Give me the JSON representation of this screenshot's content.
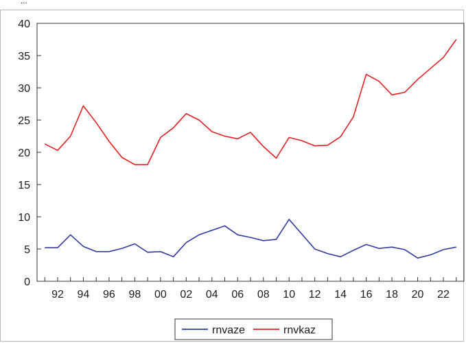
{
  "header_fragment": "...",
  "colors": {
    "rnvaze": "#2e3a9e",
    "rnvkaz": "#e02020",
    "axis": "#333333",
    "frame": "#b9b9b9"
  },
  "chart_data": {
    "type": "line",
    "title": "",
    "xlabel": "",
    "ylabel": "",
    "grid": false,
    "legend_placement": "bottom-center",
    "x": [
      1991,
      1992,
      1993,
      1994,
      1995,
      1996,
      1997,
      1998,
      1999,
      2000,
      2001,
      2002,
      2003,
      2004,
      2005,
      2006,
      2007,
      2008,
      2009,
      2010,
      2011,
      2012,
      2013,
      2014,
      2015,
      2016,
      2017,
      2018,
      2019,
      2020,
      2021,
      2022,
      2023
    ],
    "xlim": [
      1990.4,
      2023.6
    ],
    "ylim": [
      0,
      40
    ],
    "y_ticks": [
      0,
      5,
      10,
      15,
      20,
      25,
      30,
      35,
      40
    ],
    "y_tick_labels": [
      "0",
      "5",
      "10",
      "15",
      "20",
      "25",
      "30",
      "35",
      "40"
    ],
    "x_ticks": [
      1992,
      1994,
      1996,
      1998,
      2000,
      2002,
      2004,
      2006,
      2008,
      2010,
      2012,
      2014,
      2016,
      2018,
      2020,
      2022
    ],
    "x_tick_labels": [
      "92",
      "94",
      "96",
      "98",
      "00",
      "02",
      "04",
      "06",
      "08",
      "10",
      "12",
      "14",
      "16",
      "18",
      "20",
      "22"
    ],
    "series": [
      {
        "name": "rnvaze",
        "color": "#2e3a9e",
        "values": [
          5.2,
          5.2,
          7.2,
          5.4,
          4.6,
          4.6,
          5.1,
          5.8,
          4.5,
          4.6,
          3.8,
          6.0,
          7.2,
          7.9,
          8.6,
          7.2,
          6.8,
          6.3,
          6.5,
          9.6,
          7.3,
          5.0,
          4.3,
          3.8,
          4.8,
          5.7,
          5.1,
          5.3,
          4.9,
          3.6,
          4.1,
          4.9,
          5.3
        ]
      },
      {
        "name": "rnvkaz",
        "color": "#e02020",
        "values": [
          21.3,
          20.3,
          22.5,
          27.2,
          24.6,
          21.7,
          19.2,
          18.1,
          18.1,
          22.3,
          23.8,
          26.0,
          25.0,
          23.2,
          22.5,
          22.1,
          23.1,
          20.9,
          19.1,
          22.3,
          21.8,
          21.0,
          21.1,
          22.4,
          25.5,
          32.1,
          31.0,
          28.9,
          29.3,
          31.3,
          33.0,
          34.7,
          37.5
        ]
      }
    ]
  }
}
